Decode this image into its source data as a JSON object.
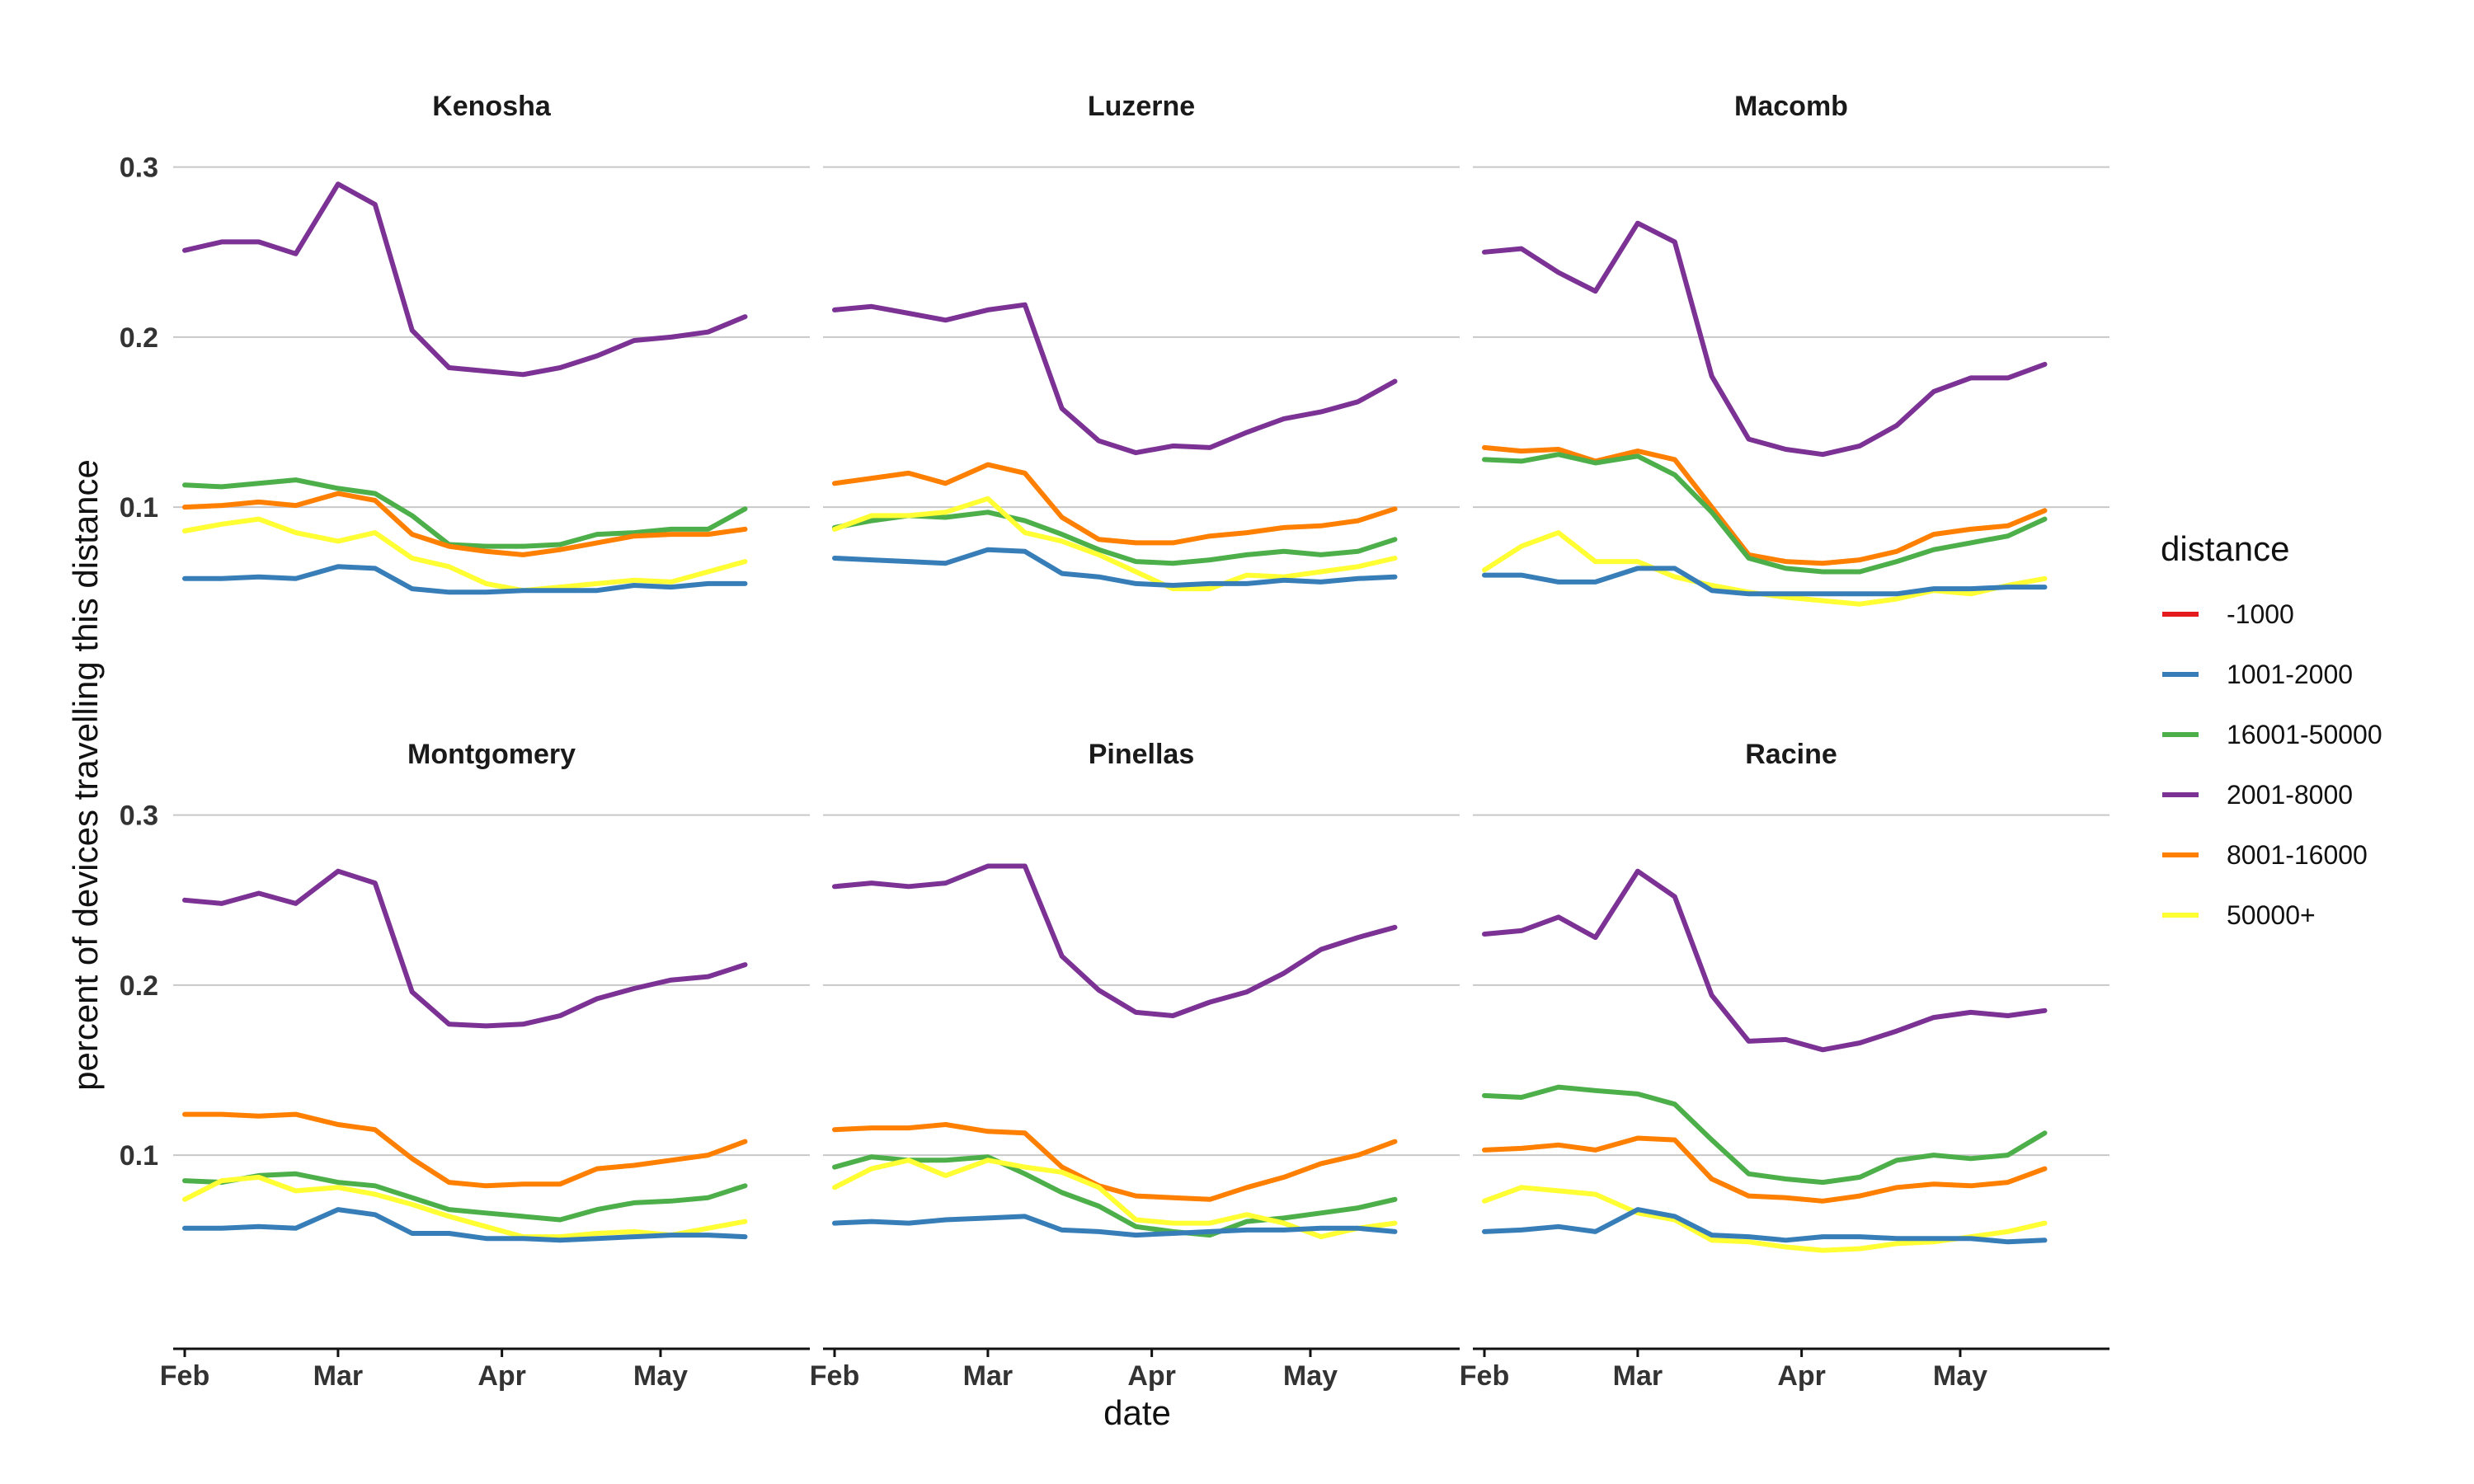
{
  "chart_data": {
    "type": "line",
    "facet_by": "county",
    "xlabel": "date",
    "ylabel": "percent of devices travelling this distance",
    "x_tick_labels": [
      "Feb",
      "Mar",
      "Apr",
      "May"
    ],
    "x_ticks": [
      "2020-02-01",
      "2020-03-01",
      "2020-04-01",
      "2020-05-01"
    ],
    "x": [
      "2020-02-01",
      "2020-02-08",
      "2020-02-15",
      "2020-02-22",
      "2020-03-01",
      "2020-03-08",
      "2020-03-15",
      "2020-03-22",
      "2020-03-29",
      "2020-04-05",
      "2020-04-12",
      "2020-04-19",
      "2020-04-26",
      "2020-05-03",
      "2020-05-10",
      "2020-05-17"
    ],
    "xlim": [
      "2020-02-01",
      "2020-05-23"
    ],
    "ylim": [
      -0.01,
      0.31
    ],
    "y_ticks": [
      0.1,
      0.2,
      0.3
    ],
    "y_tick_labels": [
      "0.1",
      "0.2",
      "0.3"
    ],
    "grid": "horizontal major",
    "legend": {
      "title": "distance",
      "position": "right",
      "entries": [
        {
          "name": "-1000",
          "color": "#e41a1c"
        },
        {
          "name": "1001-2000",
          "color": "#377eb8"
        },
        {
          "name": "16001-50000",
          "color": "#4daf4a"
        },
        {
          "name": "2001-8000",
          "color": "#7b3294"
        },
        {
          "name": "8001-16000",
          "color": "#ff7f00"
        },
        {
          "name": "50000+",
          "color": "#ffff33"
        }
      ]
    },
    "panels": [
      {
        "title": "Kenosha",
        "series": [
          {
            "name": "2001-8000",
            "values": [
              0.251,
              0.256,
              0.256,
              0.249,
              0.29,
              0.278,
              0.204,
              0.182,
              0.18,
              0.178,
              0.182,
              0.189,
              0.198,
              0.2,
              0.203,
              0.212
            ]
          },
          {
            "name": "16001-50000",
            "values": [
              0.113,
              0.112,
              0.114,
              0.116,
              0.111,
              0.108,
              0.095,
              0.078,
              0.077,
              0.077,
              0.078,
              0.084,
              0.085,
              0.087,
              0.087,
              0.099
            ]
          },
          {
            "name": "8001-16000",
            "values": [
              0.1,
              0.101,
              0.103,
              0.101,
              0.108,
              0.104,
              0.084,
              0.077,
              0.074,
              0.072,
              0.075,
              0.079,
              0.083,
              0.084,
              0.084,
              0.087
            ]
          },
          {
            "name": "50000+",
            "values": [
              0.086,
              0.09,
              0.093,
              0.085,
              0.08,
              0.085,
              0.07,
              0.065,
              0.055,
              0.051,
              0.053,
              0.055,
              0.057,
              0.056,
              0.062,
              0.068
            ]
          },
          {
            "name": "1001-2000",
            "values": [
              0.058,
              0.058,
              0.059,
              0.058,
              0.065,
              0.064,
              0.052,
              0.05,
              0.05,
              0.051,
              0.051,
              0.051,
              0.054,
              0.053,
              0.055,
              0.055
            ]
          }
        ]
      },
      {
        "title": "Luzerne",
        "series": [
          {
            "name": "2001-8000",
            "values": [
              0.216,
              0.218,
              0.214,
              0.21,
              0.216,
              0.219,
              0.158,
              0.139,
              0.132,
              0.136,
              0.135,
              0.144,
              0.152,
              0.156,
              0.162,
              0.174
            ]
          },
          {
            "name": "8001-16000",
            "values": [
              0.114,
              0.117,
              0.12,
              0.114,
              0.125,
              0.12,
              0.094,
              0.081,
              0.079,
              0.079,
              0.083,
              0.085,
              0.088,
              0.089,
              0.092,
              0.099
            ]
          },
          {
            "name": "16001-50000",
            "values": [
              0.088,
              0.092,
              0.095,
              0.094,
              0.097,
              0.092,
              0.084,
              0.075,
              0.068,
              0.067,
              0.069,
              0.072,
              0.074,
              0.072,
              0.074,
              0.081
            ]
          },
          {
            "name": "50000+",
            "values": [
              0.087,
              0.095,
              0.095,
              0.097,
              0.105,
              0.085,
              0.08,
              0.072,
              0.062,
              0.052,
              0.052,
              0.06,
              0.059,
              0.062,
              0.065,
              0.07
            ]
          },
          {
            "name": "1001-2000",
            "values": [
              0.07,
              0.069,
              0.068,
              0.067,
              0.075,
              0.074,
              0.061,
              0.059,
              0.055,
              0.054,
              0.055,
              0.055,
              0.057,
              0.056,
              0.058,
              0.059
            ]
          }
        ]
      },
      {
        "title": "Macomb",
        "series": [
          {
            "name": "2001-8000",
            "values": [
              0.25,
              0.252,
              0.238,
              0.227,
              0.267,
              0.256,
              0.177,
              0.14,
              0.134,
              0.131,
              0.136,
              0.148,
              0.168,
              0.176,
              0.176,
              0.184
            ]
          },
          {
            "name": "8001-16000",
            "values": [
              0.135,
              0.133,
              0.134,
              0.127,
              0.133,
              0.128,
              0.1,
              0.072,
              0.068,
              0.067,
              0.069,
              0.074,
              0.084,
              0.087,
              0.089,
              0.098
            ]
          },
          {
            "name": "16001-50000",
            "values": [
              0.128,
              0.127,
              0.131,
              0.126,
              0.13,
              0.119,
              0.097,
              0.07,
              0.064,
              0.062,
              0.062,
              0.068,
              0.075,
              0.079,
              0.083,
              0.093
            ]
          },
          {
            "name": "50000+",
            "values": [
              0.063,
              0.077,
              0.085,
              0.068,
              0.068,
              0.059,
              0.054,
              0.05,
              0.047,
              0.045,
              0.043,
              0.046,
              0.051,
              0.049,
              0.054,
              0.058
            ]
          },
          {
            "name": "1001-2000",
            "values": [
              0.06,
              0.06,
              0.056,
              0.056,
              0.064,
              0.064,
              0.051,
              0.049,
              0.049,
              0.049,
              0.049,
              0.049,
              0.052,
              0.052,
              0.053,
              0.053
            ]
          }
        ]
      },
      {
        "title": "Montgomery",
        "series": [
          {
            "name": "2001-8000",
            "values": [
              0.25,
              0.248,
              0.254,
              0.248,
              0.267,
              0.26,
              0.196,
              0.177,
              0.176,
              0.177,
              0.182,
              0.192,
              0.198,
              0.203,
              0.205,
              0.212
            ]
          },
          {
            "name": "8001-16000",
            "values": [
              0.124,
              0.124,
              0.123,
              0.124,
              0.118,
              0.115,
              0.098,
              0.084,
              0.082,
              0.083,
              0.083,
              0.092,
              0.094,
              0.097,
              0.1,
              0.108
            ]
          },
          {
            "name": "16001-50000",
            "values": [
              0.085,
              0.084,
              0.088,
              0.089,
              0.084,
              0.082,
              0.075,
              0.068,
              0.066,
              0.064,
              0.062,
              0.068,
              0.072,
              0.073,
              0.075,
              0.082
            ]
          },
          {
            "name": "50000+",
            "values": [
              0.074,
              0.085,
              0.087,
              0.079,
              0.081,
              0.077,
              0.071,
              0.064,
              0.058,
              0.052,
              0.052,
              0.054,
              0.055,
              0.053,
              0.057,
              0.061
            ]
          },
          {
            "name": "1001-2000",
            "values": [
              0.057,
              0.057,
              0.058,
              0.057,
              0.068,
              0.065,
              0.054,
              0.054,
              0.051,
              0.051,
              0.05,
              0.051,
              0.052,
              0.053,
              0.053,
              0.052
            ]
          }
        ]
      },
      {
        "title": "Pinellas",
        "series": [
          {
            "name": "2001-8000",
            "values": [
              0.258,
              0.26,
              0.258,
              0.26,
              0.27,
              0.27,
              0.217,
              0.197,
              0.184,
              0.182,
              0.19,
              0.196,
              0.207,
              0.221,
              0.228,
              0.234
            ]
          },
          {
            "name": "8001-16000",
            "values": [
              0.115,
              0.116,
              0.116,
              0.118,
              0.114,
              0.113,
              0.093,
              0.082,
              0.076,
              0.075,
              0.074,
              0.081,
              0.087,
              0.095,
              0.1,
              0.108
            ]
          },
          {
            "name": "16001-50000",
            "values": [
              0.093,
              0.099,
              0.097,
              0.097,
              0.099,
              0.089,
              0.078,
              0.07,
              0.058,
              0.055,
              0.053,
              0.061,
              0.063,
              0.066,
              0.069,
              0.074
            ]
          },
          {
            "name": "50000+",
            "values": [
              0.081,
              0.092,
              0.097,
              0.088,
              0.097,
              0.093,
              0.09,
              0.081,
              0.062,
              0.06,
              0.06,
              0.065,
              0.06,
              0.052,
              0.057,
              0.06
            ]
          },
          {
            "name": "1001-2000",
            "values": [
              0.06,
              0.061,
              0.06,
              0.062,
              0.063,
              0.064,
              0.056,
              0.055,
              0.053,
              0.054,
              0.055,
              0.056,
              0.056,
              0.057,
              0.057,
              0.055
            ]
          }
        ]
      },
      {
        "title": "Racine",
        "series": [
          {
            "name": "2001-8000",
            "values": [
              0.23,
              0.232,
              0.24,
              0.228,
              0.267,
              0.252,
              0.194,
              0.167,
              0.168,
              0.162,
              0.166,
              0.173,
              0.181,
              0.184,
              0.182,
              0.185
            ]
          },
          {
            "name": "16001-50000",
            "values": [
              0.135,
              0.134,
              0.14,
              0.138,
              0.136,
              0.13,
              0.109,
              0.089,
              0.086,
              0.084,
              0.087,
              0.097,
              0.1,
              0.098,
              0.1,
              0.113
            ]
          },
          {
            "name": "8001-16000",
            "values": [
              0.103,
              0.104,
              0.106,
              0.103,
              0.11,
              0.109,
              0.086,
              0.076,
              0.075,
              0.073,
              0.076,
              0.081,
              0.083,
              0.082,
              0.084,
              0.092
            ]
          },
          {
            "name": "50000+",
            "values": [
              0.073,
              0.081,
              0.079,
              0.077,
              0.066,
              0.062,
              0.05,
              0.049,
              0.046,
              0.044,
              0.045,
              0.048,
              0.049,
              0.052,
              0.055,
              0.06
            ]
          },
          {
            "name": "1001-2000",
            "values": [
              0.055,
              0.056,
              0.058,
              0.055,
              0.068,
              0.064,
              0.053,
              0.052,
              0.05,
              0.052,
              0.052,
              0.051,
              0.051,
              0.051,
              0.049,
              0.05
            ]
          }
        ]
      }
    ]
  }
}
